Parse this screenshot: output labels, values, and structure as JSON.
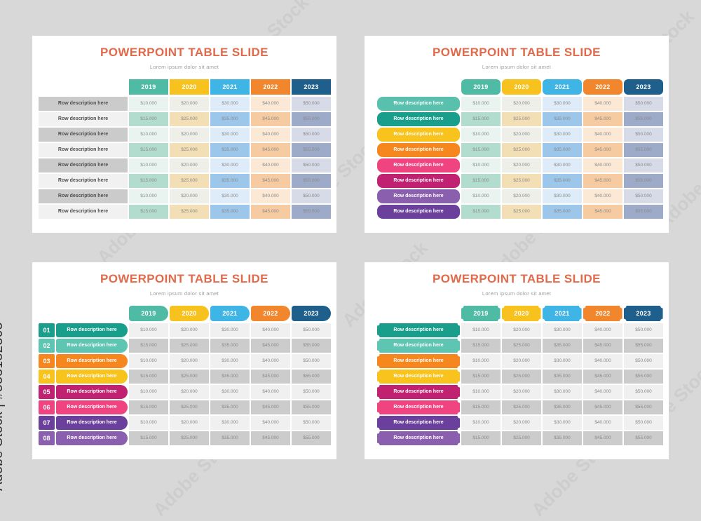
{
  "watermark": {
    "vertical_label": "Adobe Stock | #553182305",
    "tile_label": "Adobe Stock"
  },
  "slide_common": {
    "title": "POWERPOINT TABLE SLIDE",
    "subtitle": "Lorem ipsum dolor sit amet",
    "title_color": "#E2694A"
  },
  "table": {
    "year_headers": [
      "2019",
      "2020",
      "2021",
      "2022",
      "2023"
    ],
    "header_colors": [
      "#4FBBA4",
      "#F7C11E",
      "#3FB5E6",
      "#F1862C",
      "#1F5F8C"
    ],
    "row_label": "Row description here",
    "row_numbers": [
      "01",
      "02",
      "03",
      "04",
      "05",
      "06",
      "07",
      "08"
    ],
    "values_odd_rows": [
      "$10.000",
      "$20.000",
      "$30.000",
      "$40.000",
      "$50.000"
    ],
    "values_even_rows": [
      "$15.000",
      "$25.000",
      "$35.000",
      "$45.000",
      "$55.000"
    ]
  },
  "styles": {
    "colored_tints_odd": [
      "#E9F4F0",
      "#EFEFEA",
      "#DDECF8",
      "#FBE8D5",
      "#D6DBE7"
    ],
    "colored_tints_even": [
      "#B2DCCE",
      "#F3DFB6",
      "#9CC7EA",
      "#F6CBA2",
      "#9DABC8"
    ],
    "gray_cell_odd": "#F0F0F0",
    "gray_cell_even": "#CCCCCC",
    "plain_label_odd": "#CBCBCB",
    "plain_label_even": "#F1F1F1",
    "slide2_label_colors": [
      "#5AC0AE",
      "#189E8B",
      "#F8C31C",
      "#F6871F",
      "#EF4480",
      "#C02170",
      "#8A5FAE",
      "#6B3F9C"
    ],
    "slide34_label_colors": [
      "#189E8B",
      "#5EC5B2",
      "#F6871F",
      "#F8C31C",
      "#C02170",
      "#EF4480",
      "#6B3F9C",
      "#8A5FAE"
    ]
  }
}
